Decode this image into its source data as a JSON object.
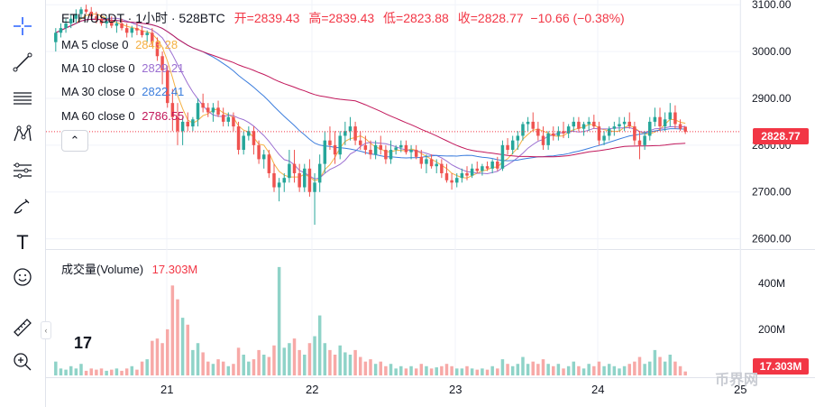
{
  "header": {
    "symbol": "ETH/USDT · 1小时 · 528BTC",
    "open_label": "开=2839.43",
    "high_label": "高=2839.43",
    "low_label": "低=2823.88",
    "close_label": "收=2828.77",
    "change_label": "−10.66 (−0.38%)"
  },
  "ma_legend": [
    {
      "label": "MA 5 close 0",
      "value": "2843.28",
      "color": "#f5b041"
    },
    {
      "label": "MA 10 close 0",
      "value": "2829.21",
      "color": "#9b6fd1"
    },
    {
      "label": "MA 30 close 0",
      "value": "2822.41",
      "color": "#3b7ddd"
    },
    {
      "label": "MA 60 close 0",
      "value": "2786.55",
      "color": "#c2185b"
    }
  ],
  "volume_legend": {
    "label": "成交量(Volume)",
    "value": "17.303M"
  },
  "price_label": "2828.77",
  "volume_label": "17.303M",
  "toolbar": [
    "crosshair-icon",
    "trend-line-icon",
    "horizontal-lines-icon",
    "pattern-icon",
    "fib-icon",
    "brush-icon",
    "text-icon",
    "emoji-icon",
    "ruler-icon",
    "zoom-icon"
  ],
  "toolbar_text": "T",
  "logo_text": "17",
  "watermark": "币界网",
  "colors": {
    "up": "#26a69a",
    "down": "#ef5350",
    "up_vol": "#8fd3c8",
    "down_vol": "#f7a9a7",
    "grid": "#f0f3fa",
    "current": "#f23645"
  },
  "chart_data": {
    "type": "candlestick",
    "price_axis": {
      "ticks": [
        "3100.00",
        "3000.00",
        "2900.00",
        "2800.00",
        "2700.00",
        "2600.00"
      ],
      "range": [
        2580,
        3110
      ]
    },
    "volume_axis": {
      "ticks": [
        "400M",
        "200M"
      ],
      "range": [
        0,
        540
      ]
    },
    "x_ticks": [
      "21",
      "22",
      "23",
      "24",
      "25"
    ],
    "current_price": 2828.77,
    "candles": [
      [
        3020,
        3050,
        3000,
        3040,
        60
      ],
      [
        3040,
        3060,
        3030,
        3050,
        30
      ],
      [
        3050,
        3070,
        3040,
        3060,
        25
      ],
      [
        3060,
        3080,
        3050,
        3070,
        40
      ],
      [
        3070,
        3090,
        3060,
        3080,
        30
      ],
      [
        3080,
        3095,
        3070,
        3090,
        50
      ],
      [
        3090,
        3100,
        3080,
        3085,
        20
      ],
      [
        3085,
        3095,
        3070,
        3075,
        30
      ],
      [
        3075,
        3085,
        3060,
        3070,
        25
      ],
      [
        3070,
        3080,
        3055,
        3060,
        30
      ],
      [
        3060,
        3075,
        3050,
        3065,
        20
      ],
      [
        3065,
        3075,
        3050,
        3055,
        25
      ],
      [
        3055,
        3065,
        3040,
        3060,
        30
      ],
      [
        3060,
        3070,
        3045,
        3050,
        20
      ],
      [
        3050,
        3060,
        3030,
        3040,
        30
      ],
      [
        3040,
        3055,
        3030,
        3050,
        40
      ],
      [
        3050,
        3060,
        3035,
        3045,
        25
      ],
      [
        3045,
        3055,
        3030,
        3035,
        60
      ],
      [
        3035,
        3045,
        3020,
        3040,
        70
      ],
      [
        3040,
        3050,
        3010,
        3020,
        150
      ],
      [
        3020,
        3030,
        2980,
        2990,
        160
      ],
      [
        2990,
        3000,
        2930,
        2960,
        140
      ],
      [
        2960,
        2970,
        2880,
        2890,
        200
      ],
      [
        2890,
        2920,
        2830,
        2860,
        390
      ],
      [
        2860,
        2890,
        2800,
        2830,
        330
      ],
      [
        2830,
        2860,
        2800,
        2850,
        250
      ],
      [
        2850,
        2870,
        2830,
        2840,
        220
      ],
      [
        2840,
        2860,
        2830,
        2855,
        110
      ],
      [
        2855,
        2900,
        2840,
        2890,
        140
      ],
      [
        2890,
        2910,
        2870,
        2880,
        100
      ],
      [
        2880,
        2890,
        2860,
        2870,
        60
      ],
      [
        2870,
        2890,
        2850,
        2880,
        50
      ],
      [
        2880,
        2895,
        2860,
        2865,
        70
      ],
      [
        2865,
        2880,
        2840,
        2850,
        60
      ],
      [
        2850,
        2870,
        2840,
        2860,
        40
      ],
      [
        2860,
        2870,
        2830,
        2840,
        50
      ],
      [
        2840,
        2850,
        2780,
        2790,
        120
      ],
      [
        2790,
        2830,
        2780,
        2820,
        90
      ],
      [
        2820,
        2840,
        2810,
        2830,
        60
      ],
      [
        2830,
        2840,
        2780,
        2800,
        70
      ],
      [
        2800,
        2810,
        2760,
        2770,
        110
      ],
      [
        2770,
        2790,
        2750,
        2780,
        90
      ],
      [
        2780,
        2790,
        2730,
        2740,
        80
      ],
      [
        2740,
        2760,
        2700,
        2710,
        130
      ],
      [
        2710,
        2730,
        2680,
        2720,
        470
      ],
      [
        2720,
        2740,
        2700,
        2730,
        120
      ],
      [
        2730,
        2790,
        2720,
        2760,
        140
      ],
      [
        2760,
        2790,
        2720,
        2740,
        160
      ],
      [
        2740,
        2760,
        2700,
        2710,
        110
      ],
      [
        2710,
        2760,
        2700,
        2750,
        90
      ],
      [
        2750,
        2770,
        2690,
        2700,
        140
      ],
      [
        2700,
        2740,
        2630,
        2720,
        170
      ],
      [
        2720,
        2780,
        2700,
        2760,
        260
      ],
      [
        2760,
        2830,
        2740,
        2810,
        140
      ],
      [
        2810,
        2840,
        2790,
        2800,
        110
      ],
      [
        2800,
        2830,
        2760,
        2780,
        90
      ],
      [
        2780,
        2830,
        2770,
        2820,
        130
      ],
      [
        2820,
        2850,
        2800,
        2830,
        100
      ],
      [
        2830,
        2860,
        2810,
        2840,
        90
      ],
      [
        2840,
        2850,
        2800,
        2810,
        110
      ],
      [
        2810,
        2830,
        2790,
        2800,
        80
      ],
      [
        2800,
        2820,
        2780,
        2790,
        60
      ],
      [
        2790,
        2810,
        2770,
        2780,
        70
      ],
      [
        2780,
        2810,
        2770,
        2800,
        50
      ],
      [
        2800,
        2820,
        2780,
        2790,
        60
      ],
      [
        2790,
        2800,
        2760,
        2770,
        40
      ],
      [
        2770,
        2810,
        2760,
        2790,
        50
      ],
      [
        2790,
        2800,
        2780,
        2795,
        30
      ],
      [
        2795,
        2810,
        2785,
        2800,
        40
      ],
      [
        2800,
        2810,
        2780,
        2785,
        30
      ],
      [
        2785,
        2800,
        2770,
        2790,
        40
      ],
      [
        2790,
        2800,
        2770,
        2775,
        30
      ],
      [
        2775,
        2790,
        2750,
        2760,
        50
      ],
      [
        2760,
        2780,
        2740,
        2770,
        40
      ],
      [
        2770,
        2780,
        2750,
        2755,
        30
      ],
      [
        2755,
        2770,
        2740,
        2760,
        35
      ],
      [
        2760,
        2770,
        2730,
        2740,
        40
      ],
      [
        2740,
        2760,
        2720,
        2725,
        50
      ],
      [
        2725,
        2740,
        2705,
        2720,
        40
      ],
      [
        2720,
        2740,
        2710,
        2730,
        30
      ],
      [
        2730,
        2750,
        2720,
        2740,
        30
      ],
      [
        2740,
        2755,
        2725,
        2735,
        40
      ],
      [
        2735,
        2760,
        2730,
        2750,
        30
      ],
      [
        2750,
        2765,
        2740,
        2745,
        25
      ],
      [
        2745,
        2760,
        2735,
        2755,
        30
      ],
      [
        2755,
        2765,
        2745,
        2750,
        25
      ],
      [
        2750,
        2770,
        2740,
        2765,
        40
      ],
      [
        2765,
        2775,
        2745,
        2750,
        30
      ],
      [
        2750,
        2810,
        2745,
        2800,
        70
      ],
      [
        2800,
        2815,
        2780,
        2790,
        50
      ],
      [
        2790,
        2820,
        2780,
        2810,
        40
      ],
      [
        2810,
        2830,
        2790,
        2820,
        50
      ],
      [
        2820,
        2850,
        2810,
        2845,
        80
      ],
      [
        2845,
        2860,
        2830,
        2850,
        50
      ],
      [
        2850,
        2870,
        2830,
        2835,
        60
      ],
      [
        2835,
        2850,
        2810,
        2820,
        50
      ],
      [
        2820,
        2840,
        2790,
        2800,
        70
      ],
      [
        2800,
        2830,
        2790,
        2825,
        50
      ],
      [
        2825,
        2840,
        2810,
        2820,
        40
      ],
      [
        2820,
        2840,
        2810,
        2830,
        50
      ],
      [
        2830,
        2850,
        2815,
        2825,
        30
      ],
      [
        2825,
        2845,
        2815,
        2840,
        40
      ],
      [
        2840,
        2860,
        2830,
        2850,
        60
      ],
      [
        2850,
        2860,
        2830,
        2835,
        40
      ],
      [
        2835,
        2850,
        2820,
        2845,
        30
      ],
      [
        2845,
        2860,
        2830,
        2850,
        50
      ],
      [
        2850,
        2865,
        2835,
        2840,
        40
      ],
      [
        2840,
        2850,
        2800,
        2810,
        60
      ],
      [
        2810,
        2830,
        2800,
        2820,
        40
      ],
      [
        2820,
        2840,
        2810,
        2835,
        50
      ],
      [
        2835,
        2850,
        2820,
        2840,
        40
      ],
      [
        2840,
        2860,
        2830,
        2845,
        30
      ],
      [
        2845,
        2860,
        2830,
        2850,
        40
      ],
      [
        2850,
        2870,
        2835,
        2840,
        50
      ],
      [
        2840,
        2850,
        2800,
        2810,
        60
      ],
      [
        2810,
        2830,
        2770,
        2800,
        80
      ],
      [
        2800,
        2830,
        2790,
        2820,
        50
      ],
      [
        2820,
        2860,
        2810,
        2850,
        60
      ],
      [
        2850,
        2880,
        2840,
        2860,
        110
      ],
      [
        2860,
        2880,
        2830,
        2840,
        80
      ],
      [
        2840,
        2870,
        2830,
        2855,
        60
      ],
      [
        2855,
        2890,
        2840,
        2870,
        90
      ],
      [
        2870,
        2885,
        2835,
        2845,
        60
      ],
      [
        2845,
        2855,
        2830,
        2835,
        40
      ],
      [
        2839.43,
        2839.43,
        2823.88,
        2828.77,
        17
      ]
    ]
  }
}
